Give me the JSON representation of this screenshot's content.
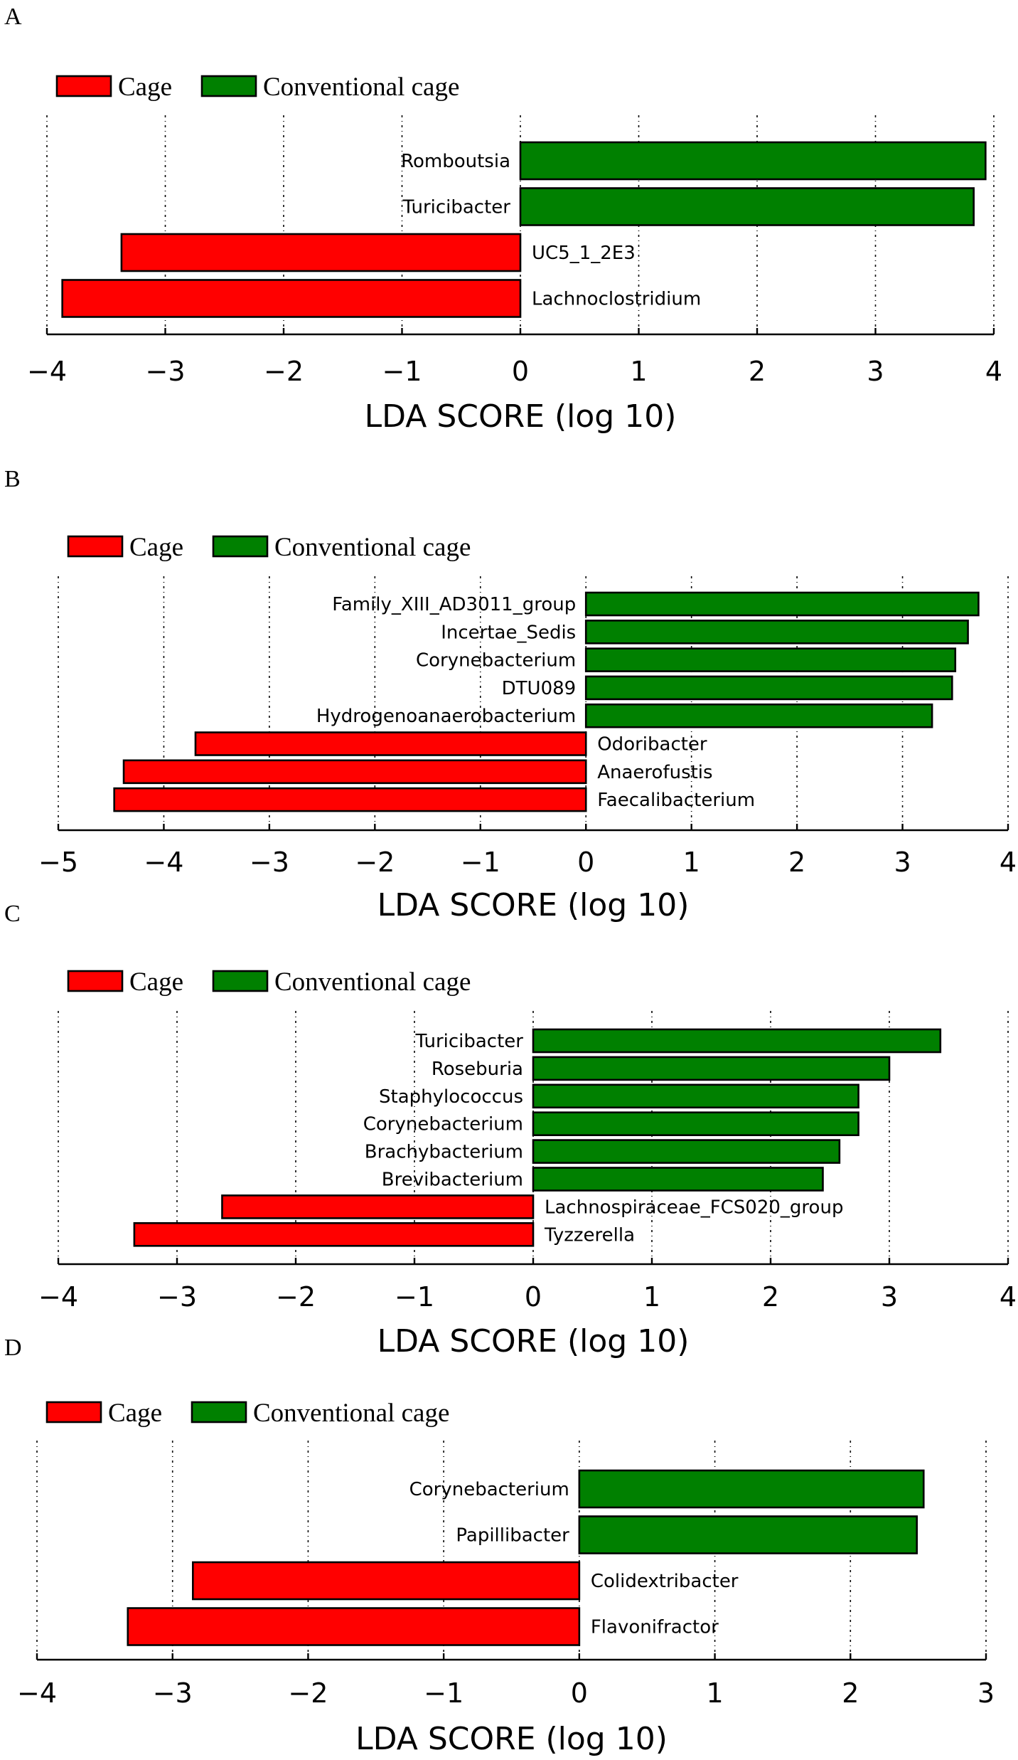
{
  "colors": {
    "cage": "#ff0000",
    "conventional": "#008000"
  },
  "legend": {
    "cage": "Cage",
    "conventional": "Conventional cage"
  },
  "chart_data": [
    {
      "panel": "A",
      "type": "bar",
      "orientation": "horizontal",
      "xlabel": "LDA SCORE (log 10)",
      "xlim": [
        -4,
        4
      ],
      "ticks": [
        -4,
        -3,
        -2,
        -1,
        0,
        1,
        2,
        3,
        4
      ],
      "tick_labels": [
        "−4",
        "−3",
        "−2",
        "−1",
        "0",
        "1",
        "2",
        "3",
        "4"
      ],
      "bars": [
        {
          "label": "Romboutsia",
          "value": 3.93,
          "group": "conventional"
        },
        {
          "label": "Turicibacter",
          "value": 3.83,
          "group": "conventional"
        },
        {
          "label": "UC5_1_2E3",
          "value": -3.37,
          "group": "cage"
        },
        {
          "label": "Lachnoclostridium",
          "value": -3.87,
          "group": "cage"
        }
      ]
    },
    {
      "panel": "B",
      "type": "bar",
      "orientation": "horizontal",
      "xlabel": "LDA SCORE (log 10)",
      "xlim": [
        -5,
        4
      ],
      "ticks": [
        -5,
        -4,
        -3,
        -2,
        -1,
        0,
        1,
        2,
        3,
        4
      ],
      "tick_labels": [
        "−5",
        "−4",
        "−3",
        "−2",
        "−1",
        "0",
        "1",
        "2",
        "3",
        "4"
      ],
      "bars": [
        {
          "label": "Family_XIII_AD3011_group",
          "value": 3.72,
          "group": "conventional"
        },
        {
          "label": "Incertae_Sedis",
          "value": 3.62,
          "group": "conventional"
        },
        {
          "label": "Corynebacterium",
          "value": 3.5,
          "group": "conventional"
        },
        {
          "label": "DTU089",
          "value": 3.47,
          "group": "conventional"
        },
        {
          "label": "Hydrogenoanaerobacterium",
          "value": 3.28,
          "group": "conventional"
        },
        {
          "label": "Odoribacter",
          "value": -3.7,
          "group": "cage"
        },
        {
          "label": "Anaerofustis",
          "value": -4.38,
          "group": "cage"
        },
        {
          "label": "Faecalibacterium",
          "value": -4.47,
          "group": "cage"
        }
      ]
    },
    {
      "panel": "C",
      "type": "bar",
      "orientation": "horizontal",
      "xlabel": "LDA SCORE (log 10)",
      "xlim": [
        -4,
        4
      ],
      "ticks": [
        -4,
        -3,
        -2,
        -1,
        0,
        1,
        2,
        3,
        4
      ],
      "tick_labels": [
        "−4",
        "−3",
        "−2",
        "−1",
        "0",
        "1",
        "2",
        "3",
        "4"
      ],
      "bars": [
        {
          "label": "Turicibacter",
          "value": 3.43,
          "group": "conventional"
        },
        {
          "label": "Roseburia",
          "value": 3.0,
          "group": "conventional"
        },
        {
          "label": "Staphylococcus",
          "value": 2.74,
          "group": "conventional"
        },
        {
          "label": "Corynebacterium",
          "value": 2.74,
          "group": "conventional"
        },
        {
          "label": "Brachybacterium",
          "value": 2.58,
          "group": "conventional"
        },
        {
          "label": "Brevibacterium",
          "value": 2.44,
          "group": "conventional"
        },
        {
          "label": "Lachnospiraceae_FCS020_group",
          "value": -2.62,
          "group": "cage"
        },
        {
          "label": "Tyzzerella",
          "value": -3.36,
          "group": "cage"
        }
      ]
    },
    {
      "panel": "D",
      "type": "bar",
      "orientation": "horizontal",
      "xlabel": "LDA SCORE (log 10)",
      "xlim": [
        -4,
        3
      ],
      "ticks": [
        -4,
        -3,
        -2,
        -1,
        0,
        1,
        2,
        3
      ],
      "tick_labels": [
        "−4",
        "−3",
        "−2",
        "−1",
        "0",
        "1",
        "2",
        "3"
      ],
      "bars": [
        {
          "label": "Corynebacterium",
          "value": 2.54,
          "group": "conventional"
        },
        {
          "label": "Papillibacter",
          "value": 2.49,
          "group": "conventional"
        },
        {
          "label": "Colidextribacter",
          "value": -2.85,
          "group": "cage"
        },
        {
          "label": "Flavonifractor",
          "value": -3.33,
          "group": "cage"
        }
      ]
    }
  ]
}
